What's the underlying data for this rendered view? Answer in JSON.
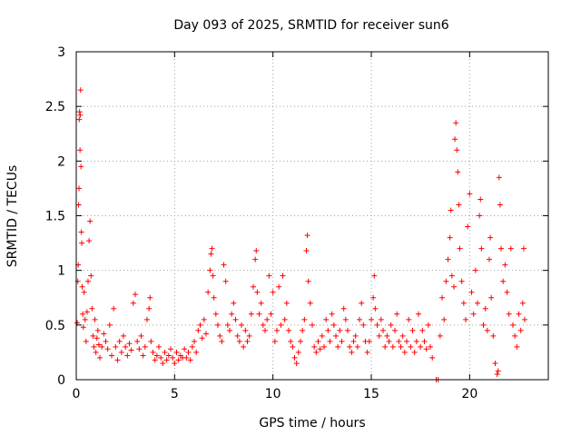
{
  "chart_data": {
    "type": "scatter",
    "title": "Day 093 of 2025, SRMTID for receiver sun6",
    "xlabel": "GPS time / hours",
    "ylabel": "SRMTID / TECUs",
    "xlim": [
      0,
      24
    ],
    "ylim": [
      0,
      3
    ],
    "xticks": [
      0,
      5,
      10,
      15,
      20
    ],
    "xtick_labels": [
      "0",
      "5",
      "10",
      "15",
      "20"
    ],
    "yticks": [
      0,
      0.5,
      1,
      1.5,
      2,
      2.5,
      3
    ],
    "ytick_labels": [
      "0",
      "0.5",
      "1",
      "1.5",
      "2",
      "2.5",
      "3"
    ],
    "grid": true,
    "marker": "plus",
    "color": "#ff0000",
    "series": [
      {
        "name": "SRMTID",
        "points": [
          [
            0.05,
            0.52
          ],
          [
            0.08,
            0.9
          ],
          [
            0.1,
            1.05
          ],
          [
            0.12,
            1.6
          ],
          [
            0.14,
            1.75
          ],
          [
            0.15,
            2.38
          ],
          [
            0.17,
            2.45
          ],
          [
            0.19,
            2.1
          ],
          [
            0.2,
            2.42
          ],
          [
            0.22,
            2.65
          ],
          [
            0.24,
            1.95
          ],
          [
            0.26,
            1.35
          ],
          [
            0.28,
            1.25
          ],
          [
            0.3,
            0.85
          ],
          [
            0.33,
            0.6
          ],
          [
            0.36,
            0.48
          ],
          [
            0.4,
            0.8
          ],
          [
            0.45,
            0.55
          ],
          [
            0.5,
            0.35
          ],
          [
            0.55,
            0.62
          ],
          [
            0.6,
            0.9
          ],
          [
            0.65,
            1.27
          ],
          [
            0.7,
            1.45
          ],
          [
            0.75,
            0.95
          ],
          [
            0.8,
            0.65
          ],
          [
            0.85,
            0.4
          ],
          [
            0.9,
            0.3
          ],
          [
            0.95,
            0.55
          ],
          [
            1.0,
            0.25
          ],
          [
            1.05,
            0.38
          ],
          [
            1.1,
            0.45
          ],
          [
            1.15,
            0.32
          ],
          [
            1.2,
            0.2
          ],
          [
            1.3,
            0.3
          ],
          [
            1.4,
            0.42
          ],
          [
            1.5,
            0.35
          ],
          [
            1.6,
            0.28
          ],
          [
            1.7,
            0.5
          ],
          [
            1.8,
            0.22
          ],
          [
            1.9,
            0.65
          ],
          [
            2.0,
            0.3
          ],
          [
            2.1,
            0.18
          ],
          [
            2.2,
            0.35
          ],
          [
            2.3,
            0.25
          ],
          [
            2.4,
            0.4
          ],
          [
            2.5,
            0.3
          ],
          [
            2.6,
            0.22
          ],
          [
            2.7,
            0.33
          ],
          [
            2.8,
            0.27
          ],
          [
            2.9,
            0.7
          ],
          [
            3.0,
            0.78
          ],
          [
            3.1,
            0.35
          ],
          [
            3.2,
            0.28
          ],
          [
            3.3,
            0.4
          ],
          [
            3.4,
            0.22
          ],
          [
            3.5,
            0.3
          ],
          [
            3.6,
            0.55
          ],
          [
            3.7,
            0.65
          ],
          [
            3.75,
            0.75
          ],
          [
            3.8,
            0.35
          ],
          [
            3.9,
            0.25
          ],
          [
            4.0,
            0.18
          ],
          [
            4.1,
            0.22
          ],
          [
            4.2,
            0.3
          ],
          [
            4.3,
            0.2
          ],
          [
            4.4,
            0.15
          ],
          [
            4.5,
            0.25
          ],
          [
            4.6,
            0.18
          ],
          [
            4.7,
            0.22
          ],
          [
            4.8,
            0.28
          ],
          [
            4.9,
            0.2
          ],
          [
            5.0,
            0.15
          ],
          [
            5.1,
            0.25
          ],
          [
            5.2,
            0.18
          ],
          [
            5.3,
            0.22
          ],
          [
            5.4,
            0.2
          ],
          [
            5.5,
            0.28
          ],
          [
            5.6,
            0.2
          ],
          [
            5.7,
            0.25
          ],
          [
            5.8,
            0.18
          ],
          [
            5.9,
            0.3
          ],
          [
            6.0,
            0.35
          ],
          [
            6.1,
            0.25
          ],
          [
            6.2,
            0.45
          ],
          [
            6.3,
            0.5
          ],
          [
            6.4,
            0.38
          ],
          [
            6.5,
            0.55
          ],
          [
            6.6,
            0.42
          ],
          [
            6.7,
            0.8
          ],
          [
            6.8,
            1.0
          ],
          [
            6.85,
            1.15
          ],
          [
            6.9,
            1.2
          ],
          [
            6.95,
            0.95
          ],
          [
            7.0,
            0.75
          ],
          [
            7.1,
            0.6
          ],
          [
            7.2,
            0.5
          ],
          [
            7.3,
            0.4
          ],
          [
            7.4,
            0.35
          ],
          [
            7.5,
            1.05
          ],
          [
            7.6,
            0.9
          ],
          [
            7.7,
            0.5
          ],
          [
            7.8,
            0.45
          ],
          [
            7.9,
            0.6
          ],
          [
            8.0,
            0.7
          ],
          [
            8.1,
            0.55
          ],
          [
            8.2,
            0.4
          ],
          [
            8.3,
            0.35
          ],
          [
            8.4,
            0.5
          ],
          [
            8.5,
            0.3
          ],
          [
            8.6,
            0.45
          ],
          [
            8.7,
            0.35
          ],
          [
            8.8,
            0.4
          ],
          [
            8.9,
            0.6
          ],
          [
            9.0,
            0.85
          ],
          [
            9.1,
            1.1
          ],
          [
            9.15,
            1.18
          ],
          [
            9.2,
            0.8
          ],
          [
            9.3,
            0.6
          ],
          [
            9.4,
            0.7
          ],
          [
            9.5,
            0.5
          ],
          [
            9.6,
            0.45
          ],
          [
            9.7,
            0.55
          ],
          [
            9.8,
            0.95
          ],
          [
            9.9,
            0.6
          ],
          [
            10.0,
            0.8
          ],
          [
            10.1,
            0.35
          ],
          [
            10.2,
            0.45
          ],
          [
            10.3,
            0.85
          ],
          [
            10.4,
            0.5
          ],
          [
            10.5,
            0.95
          ],
          [
            10.6,
            0.55
          ],
          [
            10.7,
            0.7
          ],
          [
            10.8,
            0.45
          ],
          [
            10.9,
            0.35
          ],
          [
            11.0,
            0.3
          ],
          [
            11.1,
            0.2
          ],
          [
            11.2,
            0.15
          ],
          [
            11.3,
            0.25
          ],
          [
            11.4,
            0.35
          ],
          [
            11.5,
            0.45
          ],
          [
            11.6,
            0.55
          ],
          [
            11.7,
            1.18
          ],
          [
            11.75,
            1.32
          ],
          [
            11.8,
            0.9
          ],
          [
            11.9,
            0.7
          ],
          [
            12.0,
            0.5
          ],
          [
            12.1,
            0.3
          ],
          [
            12.2,
            0.25
          ],
          [
            12.3,
            0.35
          ],
          [
            12.4,
            0.28
          ],
          [
            12.5,
            0.4
          ],
          [
            12.6,
            0.3
          ],
          [
            12.7,
            0.55
          ],
          [
            12.8,
            0.45
          ],
          [
            12.9,
            0.35
          ],
          [
            13.0,
            0.6
          ],
          [
            13.1,
            0.5
          ],
          [
            13.2,
            0.4
          ],
          [
            13.3,
            0.3
          ],
          [
            13.4,
            0.45
          ],
          [
            13.5,
            0.35
          ],
          [
            13.6,
            0.65
          ],
          [
            13.7,
            0.55
          ],
          [
            13.8,
            0.45
          ],
          [
            13.9,
            0.3
          ],
          [
            14.0,
            0.25
          ],
          [
            14.1,
            0.35
          ],
          [
            14.2,
            0.4
          ],
          [
            14.3,
            0.3
          ],
          [
            14.4,
            0.55
          ],
          [
            14.5,
            0.7
          ],
          [
            14.6,
            0.5
          ],
          [
            14.7,
            0.35
          ],
          [
            14.8,
            0.25
          ],
          [
            14.9,
            0.35
          ],
          [
            15.0,
            0.55
          ],
          [
            15.1,
            0.75
          ],
          [
            15.15,
            0.95
          ],
          [
            15.2,
            0.65
          ],
          [
            15.3,
            0.5
          ],
          [
            15.4,
            0.4
          ],
          [
            15.5,
            0.55
          ],
          [
            15.6,
            0.45
          ],
          [
            15.7,
            0.3
          ],
          [
            15.8,
            0.4
          ],
          [
            15.9,
            0.35
          ],
          [
            16.0,
            0.5
          ],
          [
            16.1,
            0.3
          ],
          [
            16.2,
            0.45
          ],
          [
            16.3,
            0.6
          ],
          [
            16.4,
            0.35
          ],
          [
            16.5,
            0.3
          ],
          [
            16.6,
            0.4
          ],
          [
            16.7,
            0.25
          ],
          [
            16.8,
            0.35
          ],
          [
            16.9,
            0.55
          ],
          [
            17.0,
            0.3
          ],
          [
            17.1,
            0.45
          ],
          [
            17.2,
            0.25
          ],
          [
            17.3,
            0.35
          ],
          [
            17.4,
            0.6
          ],
          [
            17.5,
            0.3
          ],
          [
            17.6,
            0.45
          ],
          [
            17.7,
            0.35
          ],
          [
            17.8,
            0.28
          ],
          [
            17.9,
            0.5
          ],
          [
            18.0,
            0.3
          ],
          [
            18.1,
            0.2
          ],
          [
            18.3,
            0.0
          ],
          [
            18.4,
            0.0
          ],
          [
            18.5,
            0.4
          ],
          [
            18.6,
            0.75
          ],
          [
            18.7,
            0.55
          ],
          [
            18.8,
            0.9
          ],
          [
            18.9,
            1.1
          ],
          [
            19.0,
            1.3
          ],
          [
            19.05,
            1.55
          ],
          [
            19.1,
            0.95
          ],
          [
            19.2,
            0.85
          ],
          [
            19.25,
            2.2
          ],
          [
            19.3,
            2.35
          ],
          [
            19.35,
            2.1
          ],
          [
            19.4,
            1.9
          ],
          [
            19.45,
            1.6
          ],
          [
            19.5,
            1.2
          ],
          [
            19.6,
            0.9
          ],
          [
            19.7,
            0.7
          ],
          [
            19.8,
            0.55
          ],
          [
            19.9,
            1.4
          ],
          [
            20.0,
            1.7
          ],
          [
            20.1,
            0.8
          ],
          [
            20.2,
            0.6
          ],
          [
            20.3,
            1.0
          ],
          [
            20.4,
            0.7
          ],
          [
            20.5,
            1.5
          ],
          [
            20.55,
            1.65
          ],
          [
            20.6,
            1.2
          ],
          [
            20.7,
            0.5
          ],
          [
            20.8,
            0.65
          ],
          [
            20.9,
            0.45
          ],
          [
            21.0,
            1.1
          ],
          [
            21.05,
            1.3
          ],
          [
            21.1,
            0.75
          ],
          [
            21.2,
            0.4
          ],
          [
            21.3,
            0.15
          ],
          [
            21.4,
            0.05
          ],
          [
            21.45,
            0.08
          ],
          [
            21.5,
            1.85
          ],
          [
            21.55,
            1.6
          ],
          [
            21.6,
            1.2
          ],
          [
            21.7,
            0.9
          ],
          [
            21.8,
            1.05
          ],
          [
            21.9,
            0.8
          ],
          [
            22.0,
            0.6
          ],
          [
            22.1,
            1.2
          ],
          [
            22.2,
            0.5
          ],
          [
            22.3,
            0.4
          ],
          [
            22.4,
            0.3
          ],
          [
            22.5,
            0.6
          ],
          [
            22.6,
            0.45
          ],
          [
            22.7,
            0.7
          ],
          [
            22.75,
            1.2
          ],
          [
            22.8,
            0.55
          ]
        ]
      }
    ]
  }
}
